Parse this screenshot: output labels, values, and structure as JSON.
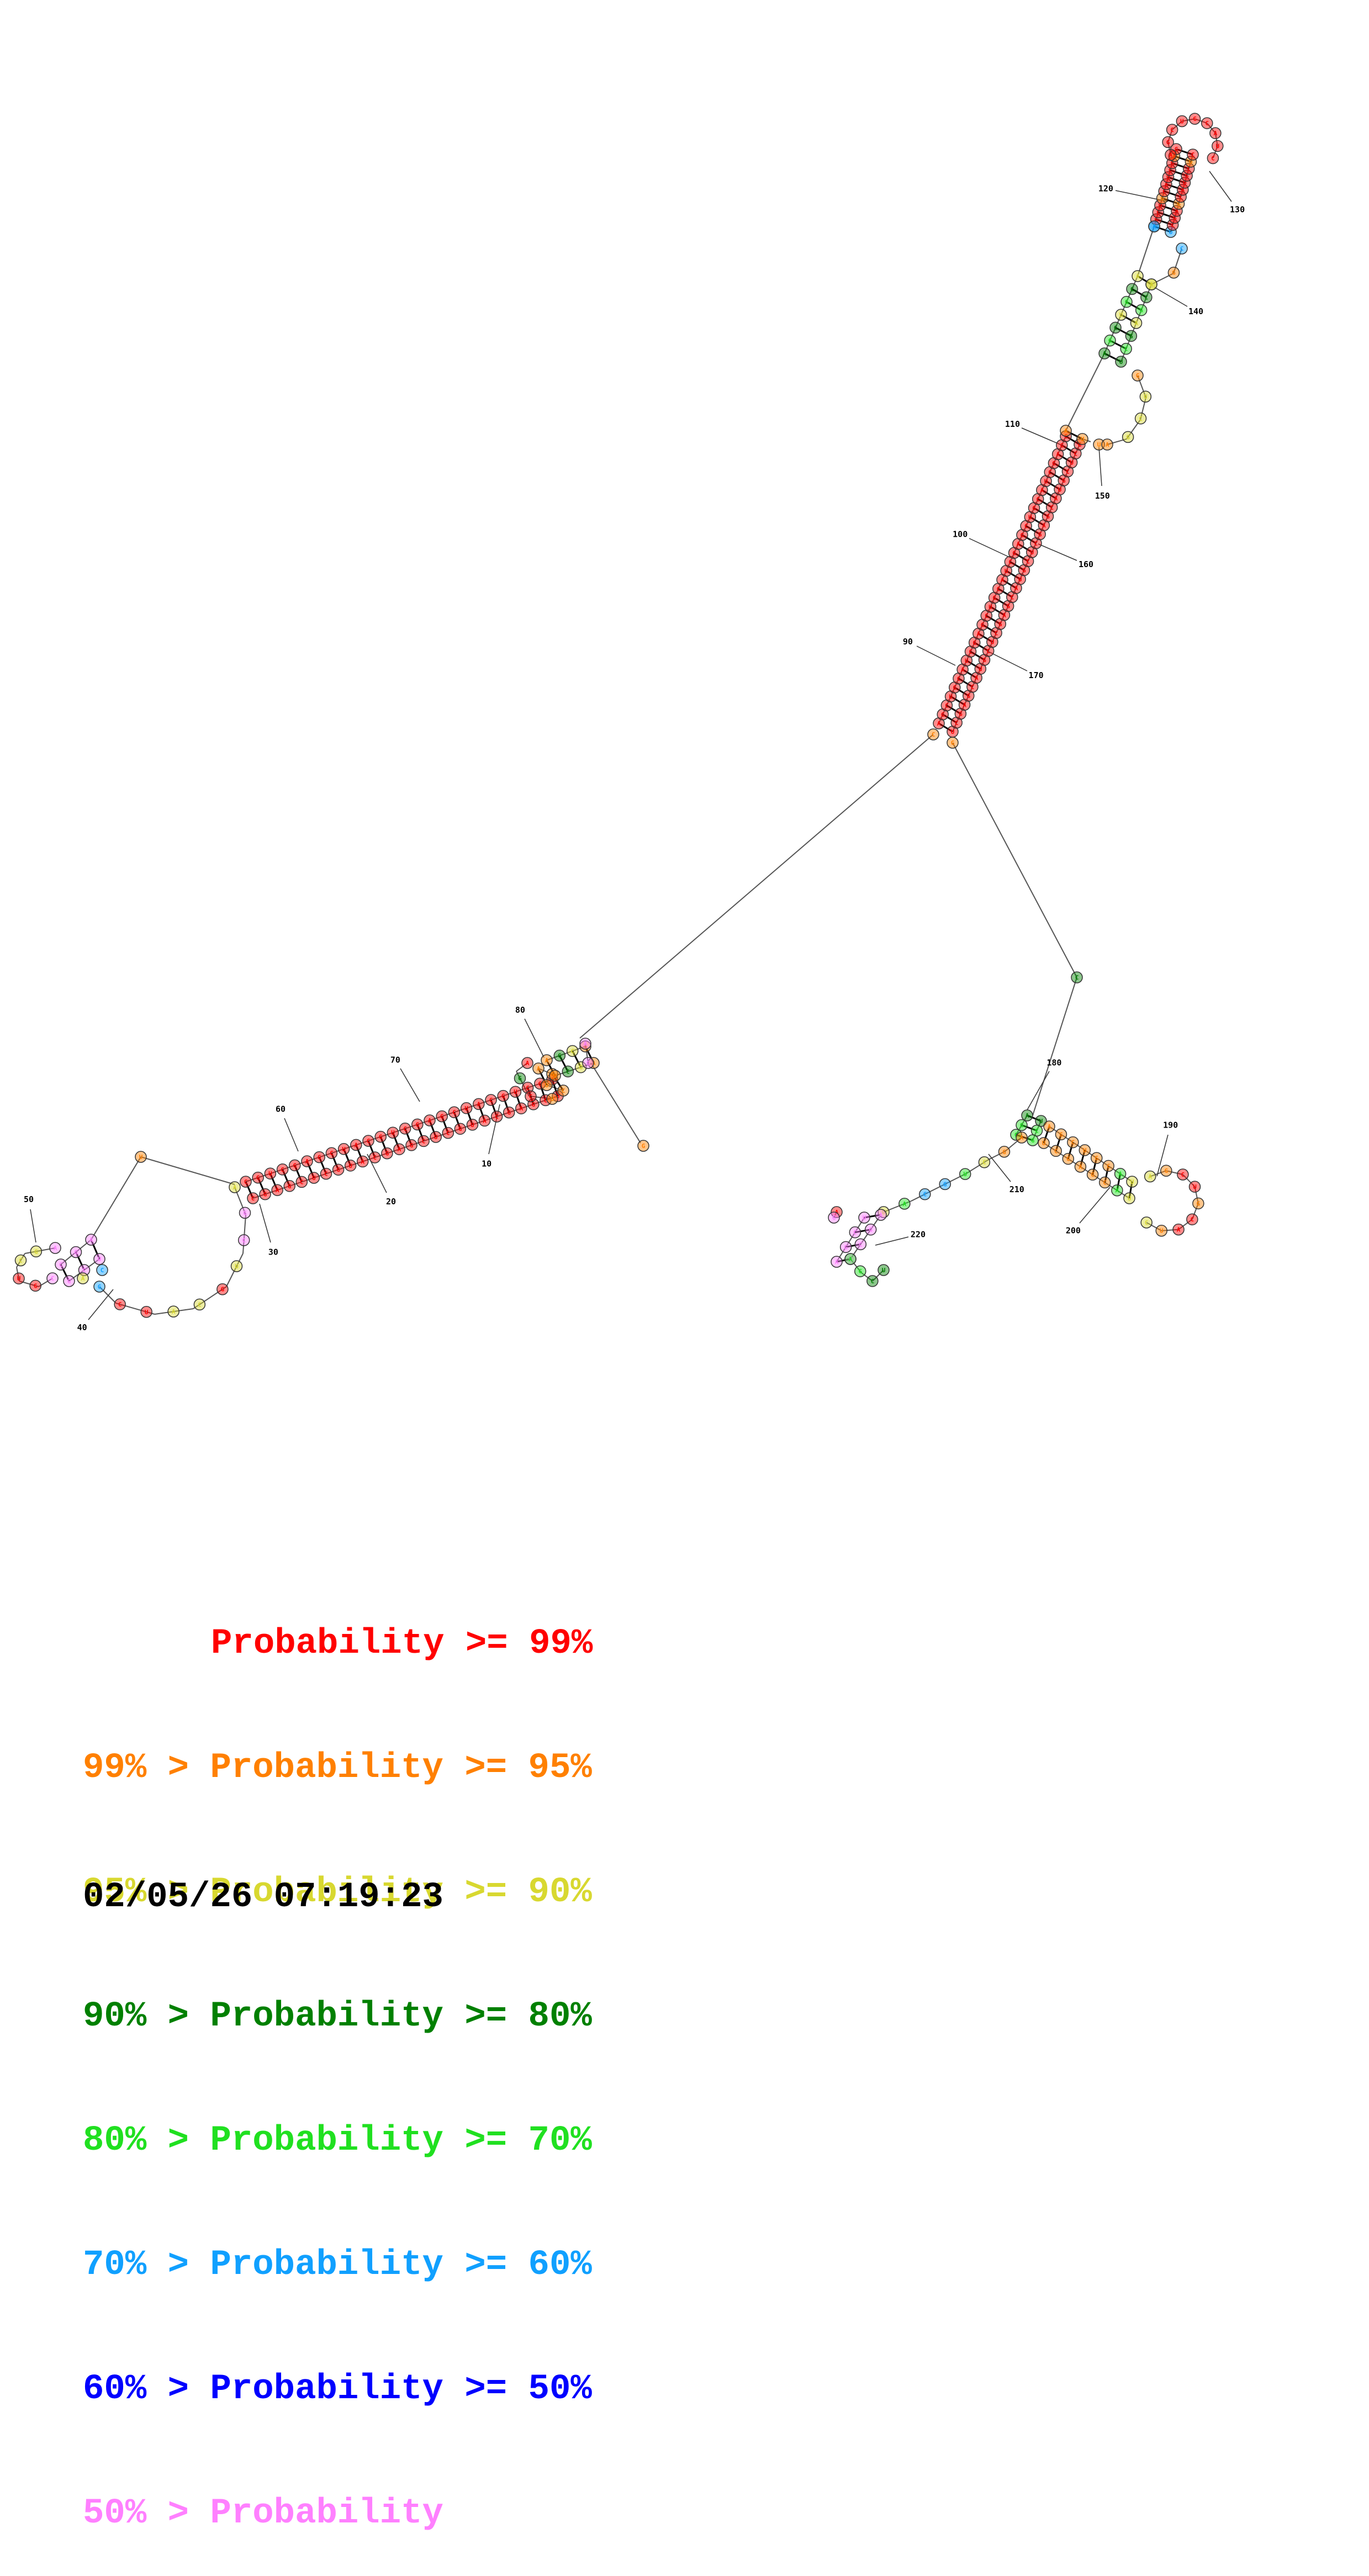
{
  "nucleotide_colors": {
    "p99": "#ff0000",
    "p95": "#ff8000",
    "p90": "#d8d830",
    "p80": "#008000",
    "p70": "#20e020",
    "p60": "#10a0ff",
    "p50": "#0000ff",
    "p00": "#ff80ff"
  },
  "position_labels": [
    "10",
    "20",
    "30",
    "40",
    "50",
    "60",
    "70",
    "80",
    "90",
    "100",
    "110",
    "120",
    "130",
    "140",
    "150",
    "160",
    "170",
    "180",
    "190",
    "200",
    "210",
    "220"
  ],
  "legend": [
    {
      "prefix": "",
      "text": "Probability >= 99%",
      "color": "#ff0000"
    },
    {
      "prefix": "99% > ",
      "text": "Probability >= 95%",
      "color": "#ff8000"
    },
    {
      "prefix": "95% > ",
      "text": "Probability >= 90%",
      "color": "#d8d830"
    },
    {
      "prefix": "90% > ",
      "text": "Probability >= 80%",
      "color": "#008000"
    },
    {
      "prefix": "80% > ",
      "text": "Probability >= 70%",
      "color": "#20e020"
    },
    {
      "prefix": "70% > ",
      "text": "Probability >= 60%",
      "color": "#10a0ff"
    },
    {
      "prefix": "60% > ",
      "text": "Probability >= 50%",
      "color": "#0000ff"
    },
    {
      "prefix": "50% > ",
      "text": "Probability",
      "color": "#ff80ff"
    }
  ],
  "timestamp": "02/05/26 07:19:23"
}
